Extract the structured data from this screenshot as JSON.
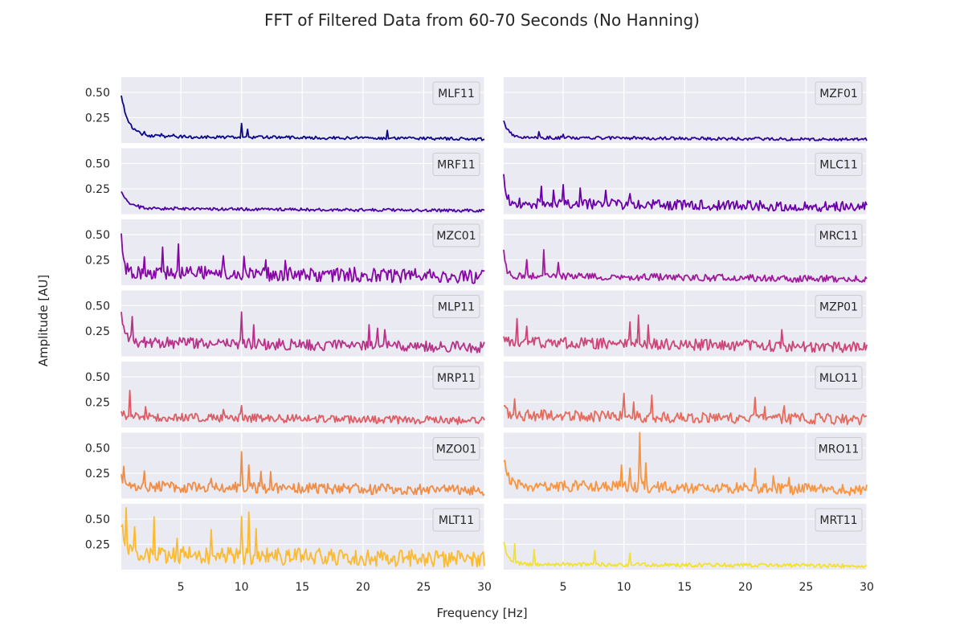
{
  "figure": {
    "title": "FFT of Filtered Data from 60-70 Seconds (No Hanning)",
    "xlabel": "Frequency [Hz]",
    "ylabel": "Amplitude [AU]"
  },
  "style": {
    "panel_bg": "#eaeaf2",
    "grid_color": "#ffffff",
    "legend_bg": "#eaeaf2",
    "legend_border": "#cccccc",
    "text_color": "#262626"
  },
  "chart_data": {
    "type": "line",
    "layout": "7 rows x 2 columns, shared x and y axes",
    "xlim": [
      0.1,
      30
    ],
    "ylim": [
      0,
      0.65
    ],
    "xticks": [
      5,
      10,
      15,
      20,
      25,
      30
    ],
    "yticks": [
      0.25,
      0.5
    ],
    "ytick_labels": [
      "0.25",
      "0.50"
    ],
    "grid": true,
    "legend_placement": "upper right",
    "x_step": 0.1,
    "series": [
      {
        "name": "MLF11",
        "row": 0,
        "col": 0,
        "color": "#0d0887",
        "base": 0.06,
        "noise": 0.03,
        "start": 0.47,
        "decay": 0.6,
        "peaks": [
          [
            2.0,
            0.13
          ],
          [
            3.4,
            0.1
          ],
          [
            4.4,
            0.1
          ],
          [
            10.0,
            0.17
          ],
          [
            10.5,
            0.12
          ],
          [
            22.0,
            0.11
          ]
        ]
      },
      {
        "name": "MZF01",
        "row": 0,
        "col": 1,
        "color": "#2c0594",
        "base": 0.05,
        "noise": 0.03,
        "start": 0.22,
        "decay": 0.4,
        "peaks": [
          [
            3.0,
            0.1
          ],
          [
            5.0,
            0.1
          ]
        ]
      },
      {
        "name": "MRF11",
        "row": 1,
        "col": 0,
        "color": "#4b03a1",
        "base": 0.05,
        "noise": 0.03,
        "start": 0.22,
        "decay": 0.6,
        "peaks": [
          [
            1.5,
            0.1
          ],
          [
            4.5,
            0.08
          ]
        ]
      },
      {
        "name": "MLC11",
        "row": 1,
        "col": 1,
        "color": "#6a00a8",
        "base": 0.09,
        "noise": 0.1,
        "start": 0.38,
        "decay": 0.2,
        "peaks": [
          [
            5.0,
            0.33
          ],
          [
            3.2,
            0.27
          ],
          [
            4.2,
            0.25
          ],
          [
            6.4,
            0.24
          ],
          [
            8.5,
            0.22
          ],
          [
            10.5,
            0.2
          ]
        ]
      },
      {
        "name": "MZC01",
        "row": 2,
        "col": 0,
        "color": "#8606a6",
        "base": 0.1,
        "noise": 0.14,
        "start": 0.48,
        "decay": 0.2,
        "peaks": [
          [
            4.8,
            0.37
          ],
          [
            3.5,
            0.36
          ],
          [
            2.0,
            0.32
          ],
          [
            8.5,
            0.26
          ],
          [
            10.2,
            0.26
          ],
          [
            12.0,
            0.26
          ],
          [
            13.6,
            0.22
          ],
          [
            19.3,
            0.18
          ]
        ]
      },
      {
        "name": "MRC11",
        "row": 2,
        "col": 1,
        "color": "#a01a9c",
        "base": 0.08,
        "noise": 0.07,
        "start": 0.33,
        "decay": 0.2,
        "peaks": [
          [
            3.4,
            0.32
          ],
          [
            4.6,
            0.25
          ],
          [
            2.0,
            0.22
          ]
        ]
      },
      {
        "name": "MLP11",
        "row": 3,
        "col": 0,
        "color": "#b93289",
        "base": 0.12,
        "noise": 0.11,
        "start": 0.4,
        "decay": 0.3,
        "peaks": [
          [
            1.0,
            0.44
          ],
          [
            10.0,
            0.39
          ],
          [
            11.0,
            0.31
          ],
          [
            20.5,
            0.3
          ],
          [
            21.2,
            0.28
          ],
          [
            21.8,
            0.3
          ]
        ]
      },
      {
        "name": "MZP01",
        "row": 3,
        "col": 1,
        "color": "#cc4778",
        "base": 0.12,
        "noise": 0.11,
        "start": 0.15,
        "decay": 0.5,
        "peaks": [
          [
            1.2,
            0.35
          ],
          [
            2.0,
            0.3
          ],
          [
            11.2,
            0.37
          ],
          [
            10.5,
            0.32
          ],
          [
            12.0,
            0.28
          ],
          [
            23.0,
            0.25
          ]
        ]
      },
      {
        "name": "MRP11",
        "row": 4,
        "col": 0,
        "color": "#dc5d65",
        "base": 0.09,
        "noise": 0.08,
        "start": 0.12,
        "decay": 0.5,
        "peaks": [
          [
            0.8,
            0.33
          ],
          [
            2.1,
            0.22
          ],
          [
            10.0,
            0.24
          ],
          [
            8.5,
            0.19
          ]
        ]
      },
      {
        "name": "MLO11",
        "row": 4,
        "col": 1,
        "color": "#e56b5d",
        "base": 0.1,
        "noise": 0.11,
        "start": 0.15,
        "decay": 0.5,
        "peaks": [
          [
            1.0,
            0.32
          ],
          [
            10.0,
            0.36
          ],
          [
            10.8,
            0.28
          ],
          [
            12.3,
            0.3
          ],
          [
            20.8,
            0.3
          ],
          [
            21.6,
            0.24
          ],
          [
            23.2,
            0.22
          ],
          [
            30.0,
            0.12
          ]
        ]
      },
      {
        "name": "MZO01",
        "row": 5,
        "col": 0,
        "color": "#ef8d46",
        "base": 0.1,
        "noise": 0.11,
        "start": 0.17,
        "decay": 0.4,
        "peaks": [
          [
            0.3,
            0.34
          ],
          [
            2.0,
            0.26
          ],
          [
            10.0,
            0.41
          ],
          [
            10.6,
            0.3
          ],
          [
            11.6,
            0.27
          ],
          [
            12.4,
            0.25
          ],
          [
            7.5,
            0.21
          ]
        ]
      },
      {
        "name": "MRO11",
        "row": 5,
        "col": 1,
        "color": "#f89540",
        "base": 0.11,
        "noise": 0.11,
        "start": 0.4,
        "decay": 0.3,
        "peaks": [
          [
            11.3,
            0.66
          ],
          [
            9.8,
            0.33
          ],
          [
            10.5,
            0.3
          ],
          [
            11.8,
            0.32
          ],
          [
            20.8,
            0.27
          ],
          [
            22.3,
            0.22
          ],
          [
            23.6,
            0.2
          ]
        ]
      },
      {
        "name": "MLT11",
        "row": 6,
        "col": 0,
        "color": "#fcba2f",
        "base": 0.12,
        "noise": 0.17,
        "start": 0.46,
        "decay": 0.3,
        "peaks": [
          [
            0.5,
            0.65
          ],
          [
            1.2,
            0.45
          ],
          [
            2.8,
            0.47
          ],
          [
            7.5,
            0.46
          ],
          [
            10.0,
            0.57
          ],
          [
            10.6,
            0.55
          ],
          [
            11.2,
            0.42
          ],
          [
            4.7,
            0.33
          ]
        ]
      },
      {
        "name": "MRT11",
        "row": 6,
        "col": 1,
        "color": "#f3e12b",
        "base": 0.05,
        "noise": 0.04,
        "start": 0.28,
        "decay": 0.3,
        "peaks": [
          [
            1.0,
            0.24
          ],
          [
            2.6,
            0.19
          ],
          [
            7.6,
            0.2
          ],
          [
            10.5,
            0.15
          ]
        ]
      }
    ]
  }
}
